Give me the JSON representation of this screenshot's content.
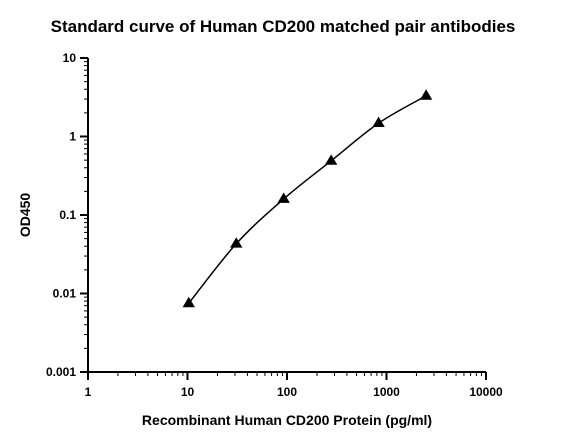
{
  "chart_data": {
    "type": "scatter",
    "title": "Standard curve of Human CD200 matched pair antibodies",
    "xlabel": "Recombinant Human CD200 Protein (pg/ml)",
    "ylabel": "OD450",
    "x_scale": "log",
    "y_scale": "log",
    "xlim": [
      1,
      10000
    ],
    "ylim": [
      0.001,
      10
    ],
    "x_ticks": [
      "1",
      "10",
      "100",
      "1000",
      "10000"
    ],
    "y_ticks": [
      "0.001",
      "0.01",
      "0.1",
      "1",
      "10"
    ],
    "grid": false,
    "legend": "none",
    "marker": "triangle",
    "series": [
      {
        "x": [
          10.3,
          30.9,
          92.6,
          277.8,
          833.3,
          2500
        ],
        "y": [
          0.0075,
          0.043,
          0.16,
          0.49,
          1.48,
          3.3
        ]
      }
    ],
    "fit_curve": true,
    "colors": {
      "marker": "#000000",
      "line": "#000000",
      "axis": "#000000"
    }
  }
}
